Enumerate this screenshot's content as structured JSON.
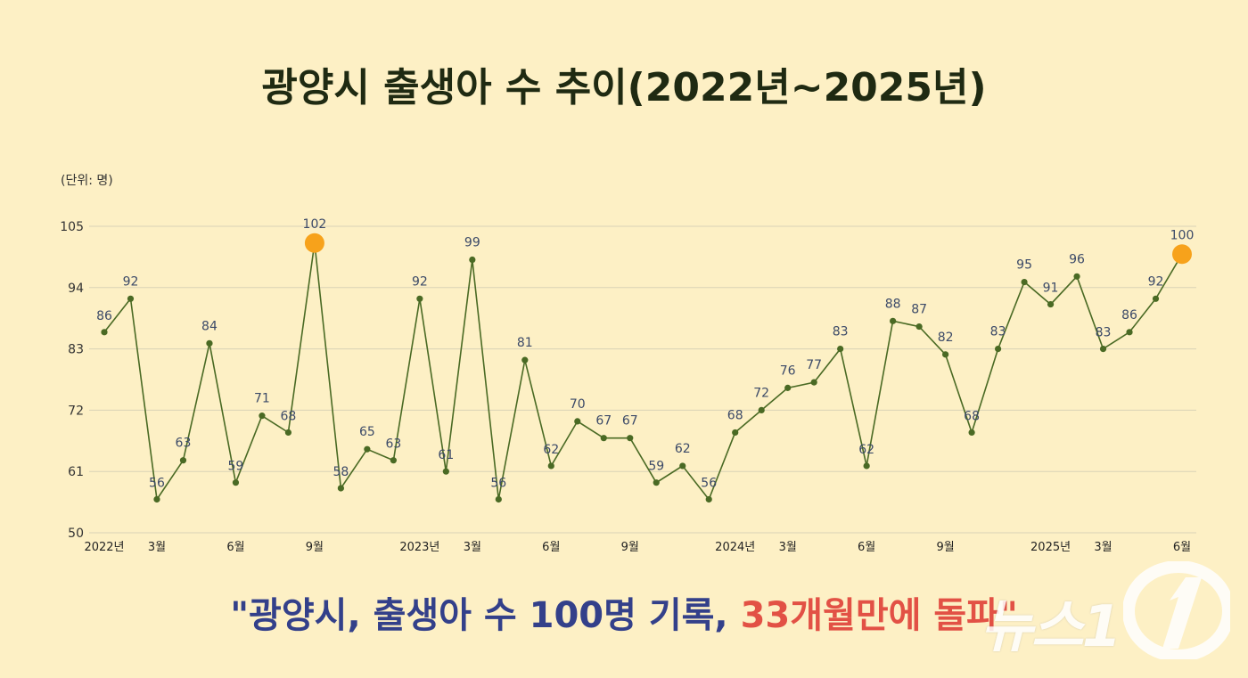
{
  "title": "광양시 출생아 수 추이(2022년~2025년)",
  "unit_label": "(단위: 명)",
  "headline": {
    "part1": "\"광양시, 출생아 수 100명 기록, ",
    "part2": "33개월만에 돌파\""
  },
  "watermark": "뉴스1",
  "colors": {
    "background": "#fdf0c5",
    "line": "#4a6a24",
    "highlight": "#f7a21b",
    "headline_blue": "#33408a",
    "headline_red": "#e25145"
  },
  "chart_data": {
    "type": "line",
    "title": "광양시 출생아 수 추이(2022년~2025년)",
    "ylabel": "(단위: 명)",
    "ylim": [
      50,
      105
    ],
    "yticks": [
      50,
      61,
      72,
      83,
      94,
      105
    ],
    "grid": true,
    "x": [
      "2022-01",
      "2022-02",
      "2022-03",
      "2022-04",
      "2022-05",
      "2022-06",
      "2022-07",
      "2022-08",
      "2022-09",
      "2022-10",
      "2022-11",
      "2022-12",
      "2023-01",
      "2023-02",
      "2023-03",
      "2023-04",
      "2023-05",
      "2023-06",
      "2023-07",
      "2023-08",
      "2023-09",
      "2023-10",
      "2023-11",
      "2023-12",
      "2024-01",
      "2024-02",
      "2024-03",
      "2024-04",
      "2024-05",
      "2024-06",
      "2024-07",
      "2024-08",
      "2024-09",
      "2024-10",
      "2024-11",
      "2024-12",
      "2025-01",
      "2025-02",
      "2025-03",
      "2025-04",
      "2025-05",
      "2025-06"
    ],
    "xtick_labels": [
      {
        "x": "2022-01",
        "label": "2022년"
      },
      {
        "x": "2022-03",
        "label": "3월"
      },
      {
        "x": "2022-06",
        "label": "6월"
      },
      {
        "x": "2022-09",
        "label": "9월"
      },
      {
        "x": "2023-01",
        "label": "2023년"
      },
      {
        "x": "2023-03",
        "label": "3월"
      },
      {
        "x": "2023-06",
        "label": "6월"
      },
      {
        "x": "2023-09",
        "label": "9월"
      },
      {
        "x": "2024-01",
        "label": "2024년"
      },
      {
        "x": "2024-03",
        "label": "3월"
      },
      {
        "x": "2024-06",
        "label": "6월"
      },
      {
        "x": "2024-09",
        "label": "9월"
      },
      {
        "x": "2025-01",
        "label": "2025년"
      },
      {
        "x": "2025-03",
        "label": "3월"
      },
      {
        "x": "2025-06",
        "label": "6월"
      }
    ],
    "series": [
      {
        "values": [
          86,
          92,
          56,
          63,
          84,
          59,
          71,
          68,
          102,
          58,
          65,
          63,
          92,
          61,
          99,
          56,
          81,
          62,
          70,
          67,
          67,
          59,
          62,
          56,
          68,
          72,
          76,
          77,
          83,
          62,
          88,
          87,
          82,
          68,
          83,
          95,
          91,
          96,
          83,
          86,
          92,
          100
        ],
        "highlight": [
          "2022-09",
          "2025-06"
        ]
      }
    ]
  }
}
